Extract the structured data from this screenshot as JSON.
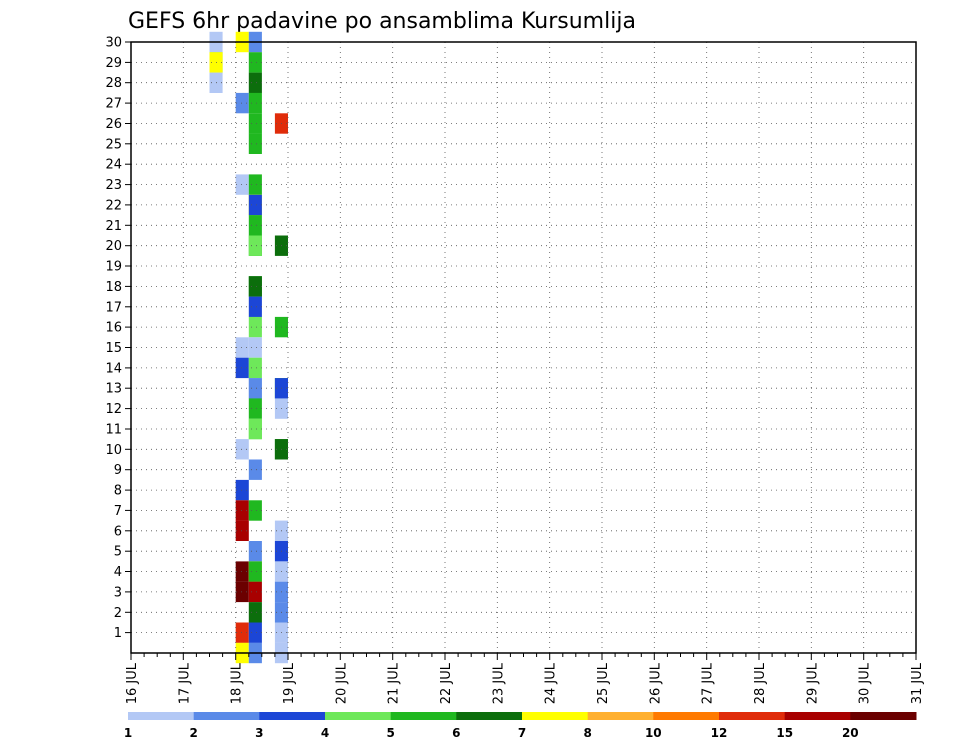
{
  "chart_data": {
    "type": "heatmap",
    "title": "GEFS 6hr padavine po ansamblima Kursumlija",
    "y_tick_labels": [
      "1",
      "2",
      "3",
      "4",
      "5",
      "6",
      "7",
      "8",
      "9",
      "10",
      "11",
      "12",
      "13",
      "14",
      "15",
      "16",
      "17",
      "18",
      "19",
      "20",
      "21",
      "22",
      "23",
      "24",
      "25",
      "26",
      "27",
      "28",
      "29",
      "30"
    ],
    "x_tick_labels": [
      "16 JUL",
      "17 JUL",
      "18 JUL",
      "19 JUL",
      "20 JUL",
      "21 JUL",
      "22 JUL",
      "23 JUL",
      "24 JUL",
      "25 JUL",
      "26 JUL",
      "27 JUL",
      "28 JUL",
      "29 JUL",
      "30 JUL",
      "31 JUL"
    ],
    "x_unit": "6-hour step from 16 JUL",
    "y_unit": "ensemble member",
    "grid": true,
    "colorbar": {
      "labels": [
        "1",
        "2",
        "3",
        "4",
        "5",
        "6",
        "7",
        "8",
        "10",
        "12",
        "15",
        "20"
      ],
      "colors": [
        "#b3c8f5",
        "#5a8ae8",
        "#1c46d6",
        "#6ee85a",
        "#20b820",
        "#0c6e0c",
        "#ffff00",
        "#ffb030",
        "#ff7a00",
        "#e02c0a",
        "#a80000",
        "#6b0000"
      ]
    },
    "cells": [
      [
        30,
        6,
        0
      ],
      [
        29,
        6,
        3
      ],
      [
        29,
        6,
        6
      ],
      [
        28,
        6,
        0
      ],
      [
        30,
        8,
        6
      ],
      [
        27,
        8,
        1
      ],
      [
        23,
        8,
        0
      ],
      [
        15,
        8,
        0
      ],
      [
        14,
        8,
        2
      ],
      [
        10,
        8,
        0
      ],
      [
        8,
        8,
        2
      ],
      [
        7,
        8,
        10
      ],
      [
        6,
        8,
        10
      ],
      [
        4,
        8,
        11
      ],
      [
        3,
        8,
        11
      ],
      [
        1,
        8,
        9
      ],
      [
        0,
        8,
        6
      ],
      [
        30,
        9,
        1
      ],
      [
        29,
        9,
        4
      ],
      [
        28,
        9,
        5
      ],
      [
        27,
        9,
        4
      ],
      [
        26,
        9,
        4
      ],
      [
        25,
        9,
        4
      ],
      [
        23,
        9,
        4
      ],
      [
        22,
        9,
        6
      ],
      [
        22,
        9,
        2
      ],
      [
        21,
        9,
        4
      ],
      [
        20,
        9,
        4
      ],
      [
        20,
        9,
        3
      ],
      [
        18,
        9,
        4
      ],
      [
        18,
        9,
        5
      ],
      [
        17,
        9,
        2
      ],
      [
        16,
        9,
        3
      ],
      [
        15,
        9,
        0
      ],
      [
        14,
        9,
        3
      ],
      [
        13,
        9,
        0
      ],
      [
        13,
        9,
        1
      ],
      [
        12,
        9,
        4
      ],
      [
        11,
        9,
        3
      ],
      [
        11,
        9,
        3
      ],
      [
        9,
        9,
        1
      ],
      [
        7,
        9,
        4
      ],
      [
        5,
        9,
        1
      ],
      [
        4,
        9,
        6
      ],
      [
        4,
        9,
        4
      ],
      [
        3,
        9,
        10
      ],
      [
        2,
        9,
        5
      ],
      [
        1,
        9,
        2
      ],
      [
        0,
        9,
        1
      ],
      [
        26,
        11,
        9
      ],
      [
        20,
        11,
        5
      ],
      [
        16,
        11,
        4
      ],
      [
        13,
        11,
        4
      ],
      [
        13,
        11,
        2
      ],
      [
        12,
        11,
        0
      ],
      [
        10,
        11,
        4
      ],
      [
        10,
        11,
        5
      ],
      [
        6,
        11,
        0
      ],
      [
        5,
        11,
        2
      ],
      [
        4,
        11,
        0
      ],
      [
        3,
        11,
        1
      ],
      [
        2,
        11,
        1
      ],
      [
        1,
        11,
        0
      ],
      [
        0,
        11,
        0
      ]
    ]
  }
}
